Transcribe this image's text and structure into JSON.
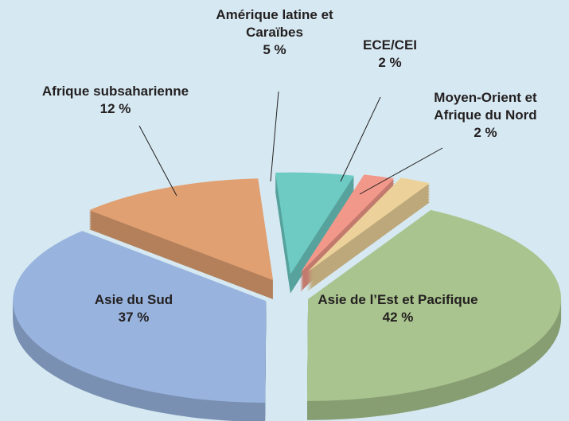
{
  "chart_data": {
    "type": "pie",
    "categories": [
      "Asie de l’Est et Pacifique",
      "Asie du Sud",
      "Afrique subsaharienne",
      "Amérique latine et Caraïbes",
      "ECE/CEI",
      "Moyen-Orient et Afrique du Nord"
    ],
    "values": [
      42,
      37,
      12,
      5,
      2,
      2
    ],
    "value_labels": [
      "42 %",
      "37 %",
      "12 %",
      "5 %",
      "2 %",
      "2 %"
    ],
    "colors": [
      "#a9c48e",
      "#98b4de",
      "#e0a072",
      "#6ecbc4",
      "#f2988a",
      "#ecd29a"
    ]
  }
}
